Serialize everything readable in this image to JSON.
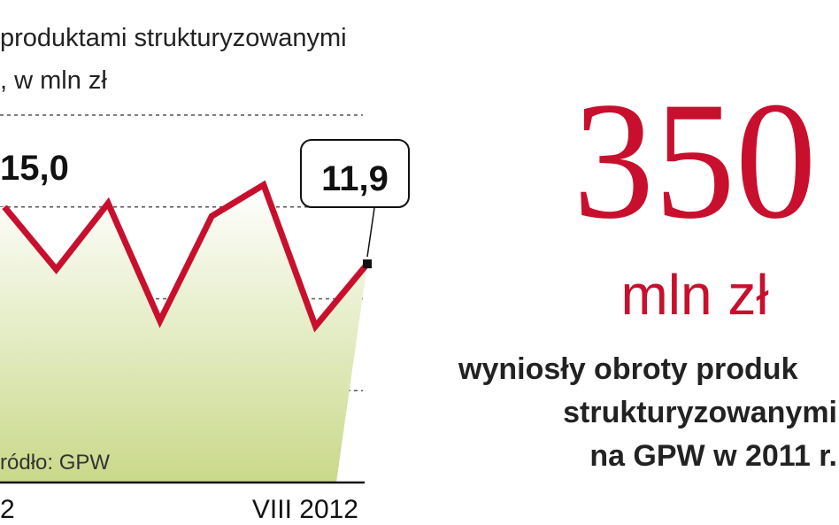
{
  "chart_data": {
    "type": "line",
    "title": "produktami strukturyzowanymi",
    "subtitle": ", w mln zł",
    "source": "ródło: GPW",
    "categories": [
      "2",
      null,
      null,
      null,
      null,
      null,
      null,
      "VIII 2012"
    ],
    "series": [
      {
        "color": "#c8102e",
        "values": [
          15.0,
          11.6,
          15.2,
          8.8,
          14.5,
          16.2,
          8.5,
          11.9
        ],
        "value_labels": [
          "15,0",
          null,
          null,
          null,
          null,
          null,
          null,
          "11,9"
        ]
      }
    ],
    "ylim": [
      0,
      20
    ],
    "yticks": [
      5,
      10,
      15,
      20
    ],
    "grid": true
  },
  "callout": {
    "number": "350",
    "unit": "mln zł",
    "lines": [
      "wyniosły obroty produk",
      "strukturyzowanymi",
      "na GPW w 2011 r."
    ]
  }
}
